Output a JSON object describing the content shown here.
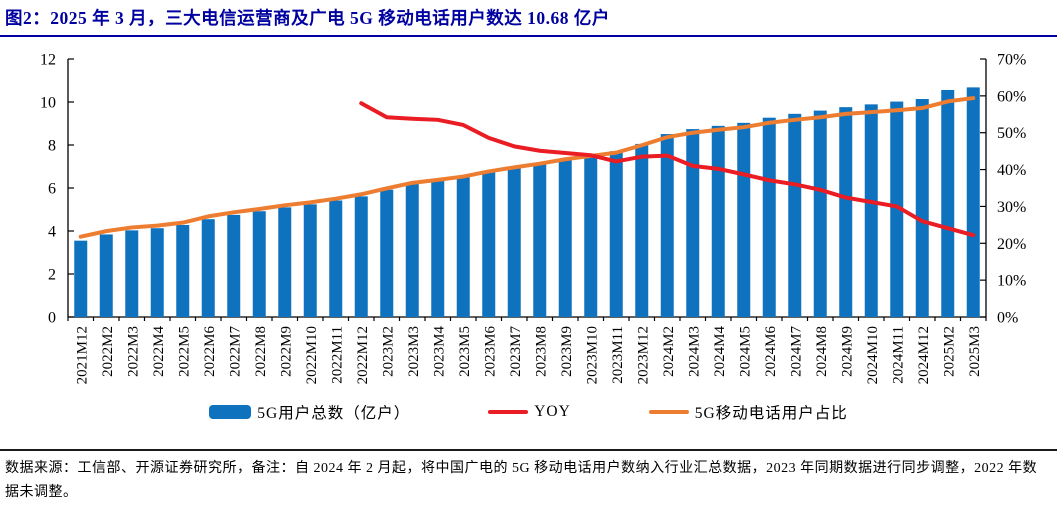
{
  "title": "图2：2025 年 3 月，三大电信运营商及广电 5G 移动电话用户数达 10.68 亿户",
  "colors": {
    "title": "#0000a0",
    "bar": "#0e72be",
    "yoy": "#ea1c24",
    "share": "#ed7d31",
    "axis": "#000000"
  },
  "legend": [
    {
      "label": "5G用户总数（亿户）",
      "type": "bar",
      "swatch": "bar"
    },
    {
      "label": "YOY",
      "type": "line",
      "swatch": "yoy"
    },
    {
      "label": "5G移动电话用户占比",
      "type": "line",
      "swatch": "share"
    }
  ],
  "chart_data": {
    "type": "combo-bar-line",
    "title": "三大电信运营商及广电5G移动电话用户数",
    "categories": [
      "2021M12",
      "2022M2",
      "2022M3",
      "2022M4",
      "2022M5",
      "2022M6",
      "2022M7",
      "2022M8",
      "2022M9",
      "2022M10",
      "2022M11",
      "2022M12",
      "2023M2",
      "2023M3",
      "2023M4",
      "2023M5",
      "2023M6",
      "2023M7",
      "2023M8",
      "2023M9",
      "2023M10",
      "2023M11",
      "2023M12",
      "2024M2",
      "2024M3",
      "2024M4",
      "2024M5",
      "2024M6",
      "2024M7",
      "2024M8",
      "2024M9",
      "2024M10",
      "2024M11",
      "2024M12",
      "2025M2",
      "2025M3"
    ],
    "series": [
      {
        "name": "5G用户总数（亿户）",
        "type": "bar",
        "axis": "left",
        "unit": "亿户",
        "values": [
          3.55,
          3.84,
          4.03,
          4.13,
          4.28,
          4.55,
          4.75,
          4.92,
          5.1,
          5.24,
          5.42,
          5.61,
          5.92,
          6.2,
          6.34,
          6.51,
          6.76,
          6.95,
          7.14,
          7.37,
          7.54,
          7.71,
          8.05,
          8.51,
          8.74,
          8.89,
          9.03,
          9.27,
          9.45,
          9.6,
          9.76,
          9.89,
          10.02,
          10.14,
          10.56,
          10.68
        ]
      },
      {
        "name": "YOY",
        "type": "line",
        "axis": "right",
        "unit": "%",
        "values": [
          null,
          null,
          null,
          null,
          null,
          null,
          null,
          null,
          null,
          null,
          null,
          58.0,
          54.2,
          53.8,
          53.5,
          52.1,
          48.6,
          46.3,
          45.1,
          44.5,
          43.9,
          42.2,
          43.5,
          43.8,
          41.0,
          40.2,
          38.7,
          37.1,
          36.0,
          34.5,
          32.4,
          31.2,
          30.0,
          26.0,
          24.1,
          22.2
        ]
      },
      {
        "name": "5G移动电话用户占比",
        "type": "line",
        "axis": "right",
        "unit": "%",
        "values": [
          21.8,
          23.3,
          24.3,
          24.8,
          25.6,
          27.3,
          28.4,
          29.3,
          30.3,
          31.1,
          32.1,
          33.3,
          34.9,
          36.4,
          37.2,
          38.1,
          39.5,
          40.6,
          41.6,
          42.8,
          43.7,
          44.6,
          46.6,
          48.8,
          50.0,
          50.8,
          51.5,
          52.7,
          53.5,
          54.2,
          55.1,
          55.6,
          56.1,
          56.7,
          58.5,
          59.4
        ]
      }
    ],
    "y_axis_left": {
      "min": 0,
      "max": 12,
      "ticks": [
        0,
        2,
        4,
        6,
        8,
        10,
        12
      ]
    },
    "y_axis_right": {
      "min": 0,
      "max": 70,
      "tick_labels": [
        "0%",
        "10%",
        "20%",
        "30%",
        "40%",
        "50%",
        "60%",
        "70%"
      ],
      "tick_values": [
        0,
        10,
        20,
        30,
        40,
        50,
        60,
        70
      ]
    },
    "grid": false,
    "legend_position": "bottom"
  },
  "footer": "数据来源：工信部、开源证券研究所，备注：自 2024 年 2 月起，将中国广电的 5G 移动电话用户数纳入行业汇总数据，2023 年同期数据进行同步调整，2022 年数据未调整。"
}
